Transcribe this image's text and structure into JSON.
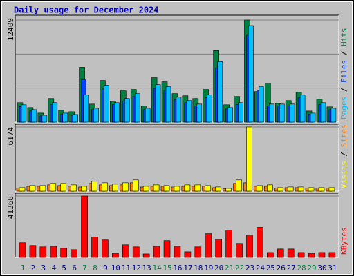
{
  "chart_data": [
    {
      "type": "bar",
      "title": "Daily usage for December 2024",
      "ylim": [
        0,
        12409
      ],
      "yticks": [
        12409
      ],
      "series": [
        {
          "name": "Hits",
          "color": "#008040",
          "values": [
            2364,
            1773,
            1097,
            2870,
            1435,
            1266,
            6669,
            2195,
            5065,
            2532,
            3799,
            3967,
            1941,
            5402,
            4896,
            3461,
            3208,
            2870,
            3967,
            8694,
            2110,
            3123,
            12409,
            3714,
            4727,
            2279,
            2617,
            3630,
            1351,
            2786,
            1857
          ]
        },
        {
          "name": "Files",
          "color": "#0040ff",
          "values": [
            1900,
            1370,
            760,
            2130,
            990,
            840,
            5149,
            1520,
            4030,
            2130,
            2580,
            3110,
            1520,
            4100,
            3870,
            2740,
            2360,
            1980,
            2960,
            6610,
            1600,
            2130,
            10560,
            3870,
            1980,
            1980,
            1980,
            2960,
            990,
            2130,
            1520
          ]
        },
        {
          "name": "Pages",
          "color": "#00c0ff",
          "values": [
            2110,
            1519,
            844,
            2364,
            1097,
            929,
            3292,
            1688,
            4474,
            2364,
            2870,
            3461,
            1688,
            4558,
            4305,
            3039,
            2617,
            2195,
            3292,
            7344,
            1773,
            2364,
            11733,
            4305,
            2195,
            2195,
            2195,
            3292,
            1097,
            2364,
            1688
          ]
        }
      ]
    },
    {
      "type": "bar",
      "ylim": [
        0,
        6174
      ],
      "yticks": [
        6174
      ],
      "series": [
        {
          "name": "Sites",
          "color": "#ff8000",
          "values": [
            300,
            470,
            470,
            604,
            537,
            470,
            400,
            738,
            604,
            537,
            604,
            805,
            400,
            470,
            470,
            400,
            470,
            470,
            470,
            336,
            235,
            738,
            805,
            470,
            470,
            300,
            336,
            336,
            300,
            300,
            300
          ]
        },
        {
          "name": "Visits",
          "color": "#ffff00",
          "values": [
            336,
            537,
            537,
            738,
            738,
            604,
            470,
            940,
            805,
            671,
            805,
            1074,
            470,
            604,
            537,
            470,
            604,
            604,
            537,
            403,
            268,
            1074,
            6174,
            537,
            604,
            336,
            403,
            403,
            336,
            336,
            336
          ]
        }
      ]
    },
    {
      "type": "bar",
      "ylim": [
        0,
        41368
      ],
      "yticks": [
        41368
      ],
      "categories": [
        "1",
        "2",
        "3",
        "4",
        "5",
        "6",
        "7",
        "8",
        "9",
        "10",
        "11",
        "12",
        "13",
        "14",
        "15",
        "16",
        "17",
        "18",
        "19",
        "20",
        "21",
        "22",
        "23",
        "24",
        "25",
        "26",
        "27",
        "28",
        "29",
        "30",
        "31"
      ],
      "category_colors": [
        "#008040",
        "#000080",
        "#000080",
        "#000080",
        "#000080",
        "#000080",
        "#008040",
        "#008040",
        "#000080",
        "#000080",
        "#000080",
        "#000080",
        "#000080",
        "#008040",
        "#008040",
        "#000080",
        "#000080",
        "#000080",
        "#000080",
        "#000080",
        "#008040",
        "#008040",
        "#000080",
        "#000080",
        "#000080",
        "#000080",
        "#000080",
        "#008040",
        "#008040",
        "#000080",
        "#000080"
      ],
      "series": [
        {
          "name": "KBytes",
          "color": "#ff0000",
          "values": [
            9870,
            7990,
            7050,
            7520,
            6110,
            5170,
            41368,
            13630,
            11750,
            2820,
            8460,
            7050,
            2350,
            7520,
            11280,
            7520,
            3760,
            7050,
            15980,
            12220,
            18330,
            9400,
            15040,
            20210,
            3290,
            5640,
            5640,
            3290,
            2820,
            3290,
            3290
          ]
        }
      ]
    }
  ]
}
